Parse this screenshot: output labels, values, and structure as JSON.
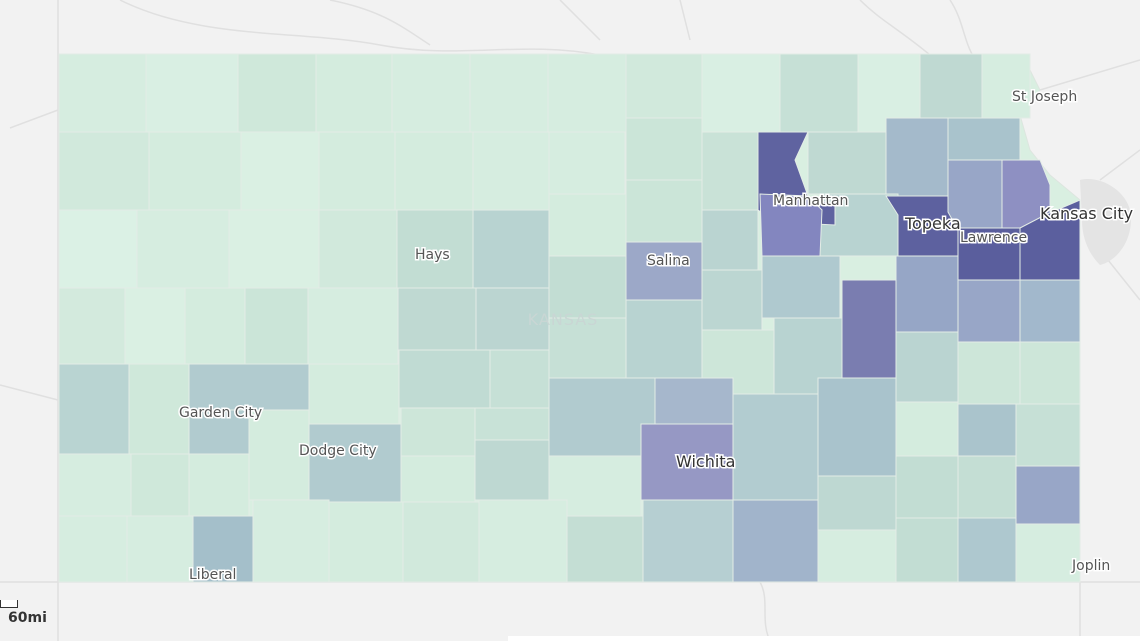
{
  "map": {
    "state_label": "KANSAS",
    "cities": [
      {
        "key": "st_joseph",
        "label": "St Joseph"
      },
      {
        "key": "kansas_city",
        "label": "Kansas City"
      },
      {
        "key": "manhattan",
        "label": "Manhattan"
      },
      {
        "key": "topeka",
        "label": "Topeka"
      },
      {
        "key": "lawrence",
        "label": "Lawrence"
      },
      {
        "key": "hays",
        "label": "Hays"
      },
      {
        "key": "salina",
        "label": "Salina"
      },
      {
        "key": "garden_city",
        "label": "Garden City"
      },
      {
        "key": "dodge_city",
        "label": "Dodge City"
      },
      {
        "key": "wichita",
        "label": "Wichita"
      },
      {
        "key": "liberal",
        "label": "Liberal"
      },
      {
        "key": "joplin",
        "label": "Joplin"
      }
    ],
    "scale": {
      "label": "60mi"
    },
    "colors": {
      "background": "#f2f2f2",
      "low": "#d8efe2",
      "mid": "#b6cfd2",
      "high": "#5b5f9e",
      "county_border": "#e3ece6"
    }
  }
}
